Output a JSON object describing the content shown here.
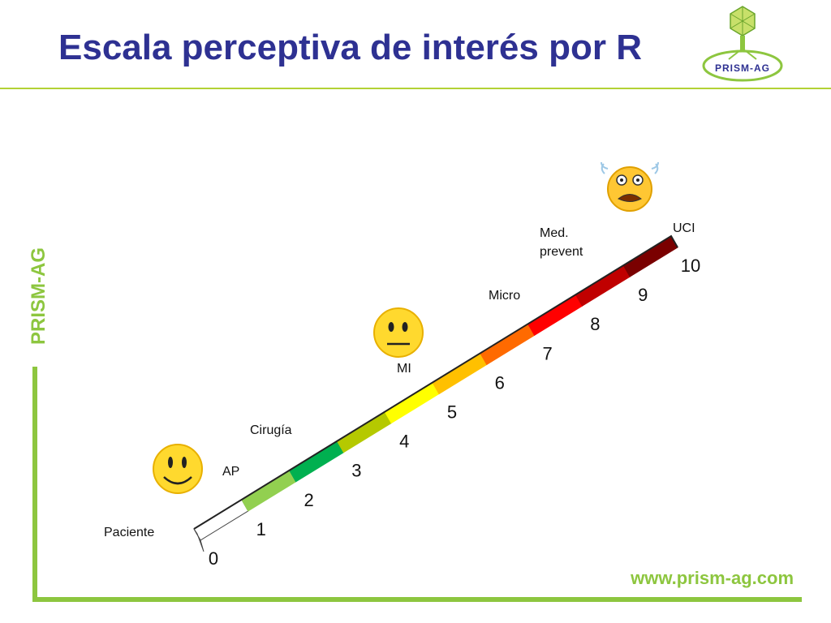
{
  "slide": {
    "title": "Escala perceptiva de interés por R",
    "side_label": "PRISM-AG",
    "website": "www.prism-ag.com",
    "logo_text": "PRISM-AG"
  },
  "scale": {
    "levels": [
      {
        "number": "0",
        "color": "#ffffff"
      },
      {
        "number": "1",
        "color": "#92d050"
      },
      {
        "number": "2",
        "color": "#00b050"
      },
      {
        "number": "3",
        "color": "#b5c900"
      },
      {
        "number": "4",
        "color": "#ffff00"
      },
      {
        "number": "5",
        "color": "#ffc000"
      },
      {
        "number": "6",
        "color": "#ff6a00"
      },
      {
        "number": "7",
        "color": "#ff0000"
      },
      {
        "number": "8",
        "color": "#c00000"
      },
      {
        "number": "9",
        "color": "#7a0000"
      },
      {
        "number": "10",
        "color": ""
      }
    ],
    "categories": [
      {
        "label": "Paciente"
      },
      {
        "label": "AP"
      },
      {
        "label": "Cirugía"
      },
      {
        "label": "MI"
      },
      {
        "label": "Micro"
      },
      {
        "label": "Med. prevent",
        "lines": [
          "Med.",
          "prevent"
        ]
      },
      {
        "label": "UCI"
      }
    ]
  },
  "emojis": [
    {
      "name": "happy-face-icon",
      "mood": "happy"
    },
    {
      "name": "neutral-face-icon",
      "mood": "neutral"
    },
    {
      "name": "scared-face-icon",
      "mood": "scared"
    }
  ],
  "colors": {
    "title": "#2e3192",
    "accent_green": "#8dc63f",
    "rule_green": "#b3d235"
  }
}
